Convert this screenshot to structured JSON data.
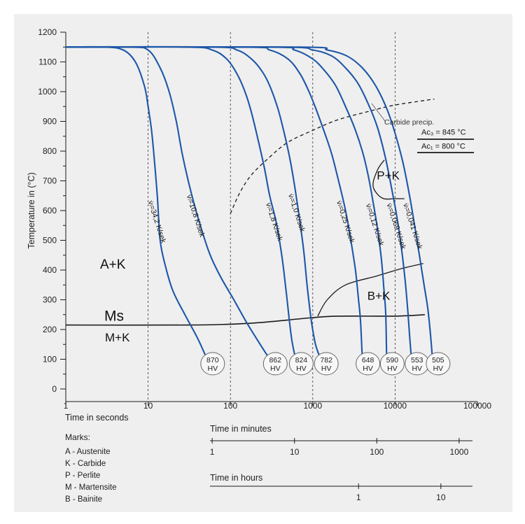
{
  "chart_data": {
    "type": "line",
    "x_scale": "log",
    "xlim": [
      1,
      100000
    ],
    "ylim": [
      0,
      1200
    ],
    "ylabel": "Temperature in (°C)",
    "xlabel": "Time in seconds",
    "x_ticks": [
      "1",
      "10",
      "100",
      "1000",
      "10000",
      "100000"
    ],
    "y_ticks": [
      "0",
      "100",
      "200",
      "300",
      "400",
      "500",
      "600",
      "700",
      "800",
      "900",
      "1000",
      "1100",
      "1200"
    ],
    "grid": "dashed vertical lines at decades",
    "cooling_curves": [
      {
        "name": "v̇ₗ=34,2 K/sek",
        "hardness": "870",
        "points": [
          [
            1,
            1150
          ],
          [
            3,
            1150
          ],
          [
            5,
            1140
          ],
          [
            7,
            1100
          ],
          [
            9,
            1020
          ],
          [
            10,
            950
          ],
          [
            11,
            870
          ],
          [
            12,
            760
          ],
          [
            13,
            640
          ],
          [
            14,
            500
          ],
          [
            16,
            420
          ],
          [
            20,
            330
          ],
          [
            28,
            250
          ],
          [
            40,
            170
          ],
          [
            52,
            100
          ]
        ]
      },
      {
        "name": "v̇ₗ=10,8 K/sek",
        "hardness": "862",
        "points": [
          [
            1,
            1150
          ],
          [
            6,
            1150
          ],
          [
            10,
            1140
          ],
          [
            14,
            1080
          ],
          [
            18,
            1000
          ],
          [
            22,
            900
          ],
          [
            26,
            790
          ],
          [
            32,
            680
          ],
          [
            40,
            580
          ],
          [
            55,
            460
          ],
          [
            75,
            380
          ],
          [
            110,
            300
          ],
          [
            160,
            220
          ],
          [
            230,
            150
          ],
          [
            300,
            100
          ]
        ]
      },
      {
        "name": "v̇ₗ=1,8 K/sek",
        "hardness": "824",
        "points": [
          [
            1,
            1150
          ],
          [
            30,
            1150
          ],
          [
            60,
            1140
          ],
          [
            90,
            1110
          ],
          [
            120,
            1060
          ],
          [
            150,
            1000
          ],
          [
            180,
            930
          ],
          [
            220,
            830
          ],
          [
            260,
            740
          ],
          [
            300,
            650
          ],
          [
            360,
            560
          ],
          [
            420,
            450
          ],
          [
            470,
            340
          ],
          [
            520,
            230
          ],
          [
            560,
            160
          ],
          [
            620,
            100
          ]
        ]
      },
      {
        "name": "v̇ₗ=1,0 K/sek",
        "hardness": "782",
        "points": [
          [
            1,
            1150
          ],
          [
            60,
            1150
          ],
          [
            120,
            1140
          ],
          [
            180,
            1110
          ],
          [
            240,
            1070
          ],
          [
            300,
            1020
          ],
          [
            380,
            940
          ],
          [
            460,
            850
          ],
          [
            540,
            760
          ],
          [
            620,
            660
          ],
          [
            700,
            560
          ],
          [
            780,
            460
          ],
          [
            860,
            340
          ],
          [
            960,
            230
          ],
          [
            1080,
            150
          ],
          [
            1250,
            100
          ]
        ]
      },
      {
        "name": "v̇ₗ=0,25 K/sek",
        "hardness": "648",
        "points": [
          [
            1,
            1150
          ],
          [
            150,
            1150
          ],
          [
            300,
            1140
          ],
          [
            500,
            1110
          ],
          [
            700,
            1060
          ],
          [
            900,
            1000
          ],
          [
            1100,
            940
          ],
          [
            1400,
            860
          ],
          [
            1700,
            790
          ],
          [
            2100,
            690
          ],
          [
            2500,
            600
          ],
          [
            2900,
            500
          ],
          [
            3300,
            400
          ],
          [
            3600,
            300
          ],
          [
            3800,
            230
          ],
          [
            4000,
            100
          ]
        ]
      },
      {
        "name": "v̇ₗ=0,12 K/sek",
        "hardness": "590",
        "points": [
          [
            1,
            1150
          ],
          [
            300,
            1150
          ],
          [
            600,
            1140
          ],
          [
            1000,
            1110
          ],
          [
            1400,
            1070
          ],
          [
            1900,
            1020
          ],
          [
            2500,
            950
          ],
          [
            3200,
            880
          ],
          [
            4000,
            800
          ],
          [
            4700,
            720
          ],
          [
            5400,
            630
          ],
          [
            6100,
            540
          ],
          [
            6800,
            440
          ],
          [
            7300,
            340
          ],
          [
            7700,
            250
          ],
          [
            7900,
            100
          ]
        ]
      },
      {
        "name": "v̇ₗ=0,069 K/sek",
        "hardness": "553",
        "points": [
          [
            1,
            1150
          ],
          [
            400,
            1150
          ],
          [
            1000,
            1140
          ],
          [
            1700,
            1120
          ],
          [
            2500,
            1080
          ],
          [
            3500,
            1030
          ],
          [
            4700,
            960
          ],
          [
            6100,
            880
          ],
          [
            7600,
            780
          ],
          [
            9000,
            680
          ],
          [
            10500,
            580
          ],
          [
            12000,
            470
          ],
          [
            13300,
            360
          ],
          [
            14300,
            260
          ],
          [
            15000,
            180
          ],
          [
            15800,
            100
          ]
        ]
      },
      {
        "name": "v̇ₗ=0,041 K/sek",
        "hardness": "505",
        "points": [
          [
            1,
            1150
          ],
          [
            700,
            1150
          ],
          [
            1500,
            1140
          ],
          [
            2600,
            1120
          ],
          [
            4000,
            1080
          ],
          [
            5800,
            1020
          ],
          [
            8000,
            940
          ],
          [
            10000,
            860
          ],
          [
            12500,
            760
          ],
          [
            15000,
            650
          ],
          [
            17500,
            540
          ],
          [
            20000,
            440
          ],
          [
            22500,
            350
          ],
          [
            25000,
            270
          ],
          [
            27000,
            180
          ],
          [
            28500,
            100
          ]
        ]
      }
    ],
    "boundaries": {
      "ms_line": [
        [
          1,
          215
        ],
        [
          30,
          215
        ],
        [
          100,
          218
        ],
        [
          200,
          222
        ],
        [
          500,
          232
        ],
        [
          1000,
          240
        ],
        [
          2000,
          245
        ],
        [
          10000,
          245
        ],
        [
          23000,
          250
        ]
      ],
      "bainite_region": [
        [
          1150,
          245
        ],
        [
          1500,
          300
        ],
        [
          2500,
          350
        ],
        [
          6000,
          380
        ],
        [
          12000,
          405
        ],
        [
          22000,
          422
        ]
      ],
      "carbide_precipitation": [
        [
          100,
          590
        ],
        [
          130,
          660
        ],
        [
          180,
          720
        ],
        [
          300,
          780
        ],
        [
          500,
          830
        ],
        [
          1000,
          870
        ],
        [
          2000,
          905
        ],
        [
          5000,
          935
        ],
        [
          10000,
          955
        ],
        [
          30000,
          975
        ]
      ],
      "pearlite_nose": [
        [
          7400,
          770
        ],
        [
          6200,
          740
        ],
        [
          5400,
          690
        ],
        [
          5900,
          660
        ],
        [
          7300,
          640
        ],
        [
          9800,
          640
        ],
        [
          13000,
          640
        ]
      ]
    },
    "hardness_values": [
      "870",
      "862",
      "824",
      "782",
      "648",
      "590",
      "553",
      "505"
    ],
    "hardness_unit": "HV",
    "region_labels": {
      "ak": "A+K",
      "ms": "Ms",
      "mk": "M+K",
      "pk": "P+K",
      "bk": "B+K"
    },
    "annotations": {
      "carbide": "Carbide precip.",
      "ac3": "Ac₃ = 845 °C",
      "ac1": "Ac₁ = 800 °C"
    },
    "minutes_axis": {
      "label": "Time in minutes",
      "ticks": [
        "1",
        "10",
        "100",
        "1000"
      ]
    },
    "hours_axis": {
      "label": "Time in hours",
      "ticks": [
        "1",
        "10"
      ]
    }
  },
  "legend": {
    "title": "Marks:",
    "items": [
      "A - Austenite",
      "K - Carbide",
      "P - Perlite",
      "M - Martensite",
      "B - Bainite"
    ]
  },
  "colors": {
    "curve": "#1d57a8",
    "line": "#1a1a1a",
    "grid": "#333333",
    "panel": "#efefef"
  }
}
